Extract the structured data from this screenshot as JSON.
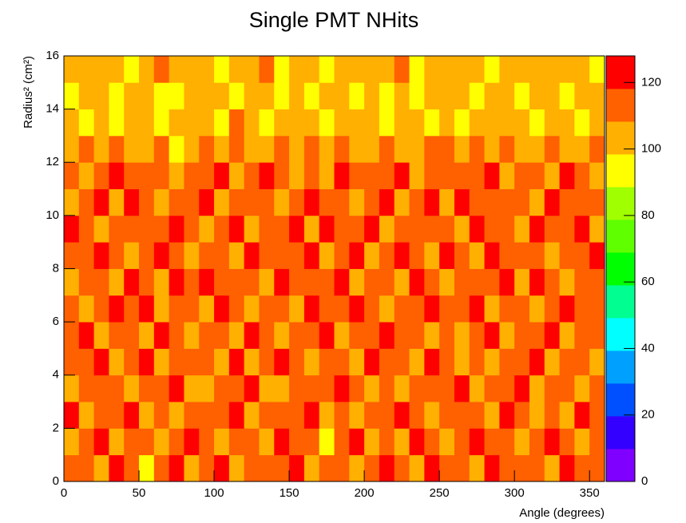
{
  "chart_data": {
    "type": "heatmap",
    "title": "Single PMT NHits",
    "x_label": "Angle (degrees)",
    "y_label": "Radius² (cm²)",
    "xlim": [
      0,
      360
    ],
    "xticks": [
      0,
      50,
      100,
      150,
      200,
      250,
      300,
      350
    ],
    "ylim": [
      0,
      16
    ],
    "yticks": [
      0,
      2,
      4,
      6,
      8,
      10,
      12,
      14,
      16
    ],
    "zlim": [
      0,
      128
    ],
    "zticks": [
      0,
      20,
      40,
      60,
      80,
      100,
      120
    ],
    "colorscale": [
      "#7f00ff",
      "#3300ff",
      "#0050ff",
      "#00a0ff",
      "#00ffff",
      "#00ff90",
      "#00ff00",
      "#60ff00",
      "#a0ff00",
      "#ffff00",
      "#ffb000",
      "#ff6000",
      "#ff0000"
    ],
    "z": [
      [
        112,
        118,
        105,
        121,
        110,
        98,
        115,
        119,
        108,
        113,
        122,
        104,
        117,
        109,
        115,
        120,
        101,
        111,
        118,
        107,
        114,
        123,
        110,
        105,
        119,
        112,
        116,
        103,
        120,
        109,
        114,
        118,
        106,
        121,
        111,
        115
      ],
      [
        108,
        115,
        120,
        102,
        117,
        111,
        106,
        114,
        121,
        109,
        103,
        118,
        112,
        107,
        120,
        115,
        110,
        98,
        116,
        122,
        108,
        113,
        104,
        119,
        111,
        106,
        117,
        121,
        109,
        114,
        102,
        116,
        120,
        110,
        107,
        118
      ],
      [
        119,
        104,
        113,
        110,
        122,
        107,
        118,
        101,
        112,
        116,
        109,
        121,
        105,
        114,
        110,
        118,
        123,
        107,
        112,
        104,
        117,
        110,
        120,
        115,
        103,
        118,
        109,
        112,
        106,
        121,
        117,
        108,
        113,
        104,
        119,
        110
      ],
      [
        106,
        117,
        110,
        118,
        103,
        114,
        109,
        122,
        107,
        100,
        115,
        111,
        119,
        108,
        104,
        113,
        116,
        109,
        121,
        114,
        102,
        118,
        107,
        111,
        116,
        109,
        122,
        105,
        114,
        110,
        120,
        103,
        117,
        112,
        106,
        114
      ],
      [
        115,
        109,
        121,
        106,
        113,
        119,
        104,
        111,
        117,
        112,
        108,
        120,
        102,
        116,
        121,
        109,
        105,
        118,
        110,
        106,
        119,
        113,
        116,
        104,
        120,
        112,
        107,
        118,
        101,
        115,
        109,
        121,
        108,
        116,
        113,
        104
      ],
      [
        110,
        120,
        104,
        116,
        111,
        107,
        121,
        113,
        103,
        118,
        114,
        106,
        122,
        110,
        108,
        117,
        112,
        120,
        104,
        115,
        109,
        121,
        111,
        118,
        107,
        113,
        104,
        116,
        120,
        108,
        114,
        110,
        119,
        105,
        118,
        111
      ],
      [
        117,
        106,
        114,
        119,
        109,
        122,
        108,
        116,
        111,
        105,
        120,
        113,
        107,
        118,
        115,
        104,
        121,
        110,
        116,
        119,
        112,
        106,
        118,
        109,
        122,
        115,
        110,
        120,
        107,
        113,
        118,
        105,
        116,
        121,
        109,
        115
      ],
      [
        104,
        118,
        111,
        108,
        120,
        113,
        103,
        119,
        115,
        121,
        109,
        116,
        112,
        104,
        120,
        118,
        109,
        114,
        122,
        107,
        117,
        112,
        104,
        120,
        113,
        108,
        118,
        111,
        116,
        121,
        106,
        119,
        112,
        108,
        117,
        110
      ],
      [
        113,
        109,
        122,
        115,
        106,
        117,
        120,
        110,
        104,
        113,
        118,
        107,
        121,
        115,
        109,
        111,
        119,
        105,
        113,
        120,
        108,
        116,
        121,
        110,
        105,
        119,
        114,
        107,
        122,
        110,
        115,
        112,
        104,
        118,
        111,
        120
      ],
      [
        120,
        111,
        106,
        118,
        114,
        109,
        115,
        121,
        112,
        108,
        116,
        120,
        104,
        111,
        117,
        122,
        107,
        119,
        110,
        114,
        121,
        105,
        113,
        118,
        116,
        110,
        108,
        121,
        112,
        117,
        104,
        120,
        115,
        109,
        122,
        107
      ],
      [
        108,
        116,
        119,
        104,
        121,
        112,
        107,
        114,
        118,
        120,
        103,
        112,
        118,
        109,
        106,
        115,
        120,
        112,
        117,
        105,
        111,
        119,
        107,
        116,
        122,
        104,
        119,
        113,
        109,
        118,
        112,
        106,
        121,
        114,
        110,
        117
      ],
      [
        115,
        107,
        112,
        120,
        109,
        116,
        118,
        105,
        113,
        110,
        119,
        106,
        114,
        120,
        112,
        108,
        116,
        103,
        121,
        110,
        118,
        114,
        120,
        106,
        111,
        117,
        109,
        115,
        120,
        105,
        118,
        113,
        108,
        119,
        115,
        104
      ],
      [
        102,
        110,
        105,
        113,
        100,
        108,
        111,
        98,
        106,
        112,
        104,
        109,
        99,
        107,
        113,
        101,
        110,
        105,
        114,
        108,
        102,
        111,
        106,
        100,
        112,
        109,
        104,
        110,
        107,
        113,
        103,
        108,
        111,
        99,
        106,
        109
      ],
      [
        100,
        95,
        104,
        98,
        108,
        102,
        92,
        106,
        99,
        103,
        96,
        110,
        101,
        94,
        105,
        99,
        107,
        97,
        103,
        100,
        108,
        95,
        102,
        106,
        98,
        104,
        93,
        101,
        107,
        99,
        105,
        97,
        103,
        100,
        96,
        104
      ],
      [
        97,
        104,
        99,
        93,
        101,
        106,
        98,
        95,
        103,
        100,
        107,
        94,
        99,
        104,
        97,
        102,
        95,
        106,
        100,
        93,
        104,
        98,
        101,
        96,
        105,
        99,
        102,
        94,
        100,
        107,
        97,
        103,
        99,
        95,
        104,
        100
      ],
      [
        105,
        99,
        108,
        102,
        96,
        104,
        110,
        99,
        103,
        106,
        97,
        105,
        100,
        109,
        98,
        104,
        101,
        96,
        107,
        103,
        99,
        105,
        110,
        98,
        102,
        106,
        100,
        104,
        97,
        108,
        101,
        99,
        105,
        102,
        107,
        98
      ]
    ]
  }
}
